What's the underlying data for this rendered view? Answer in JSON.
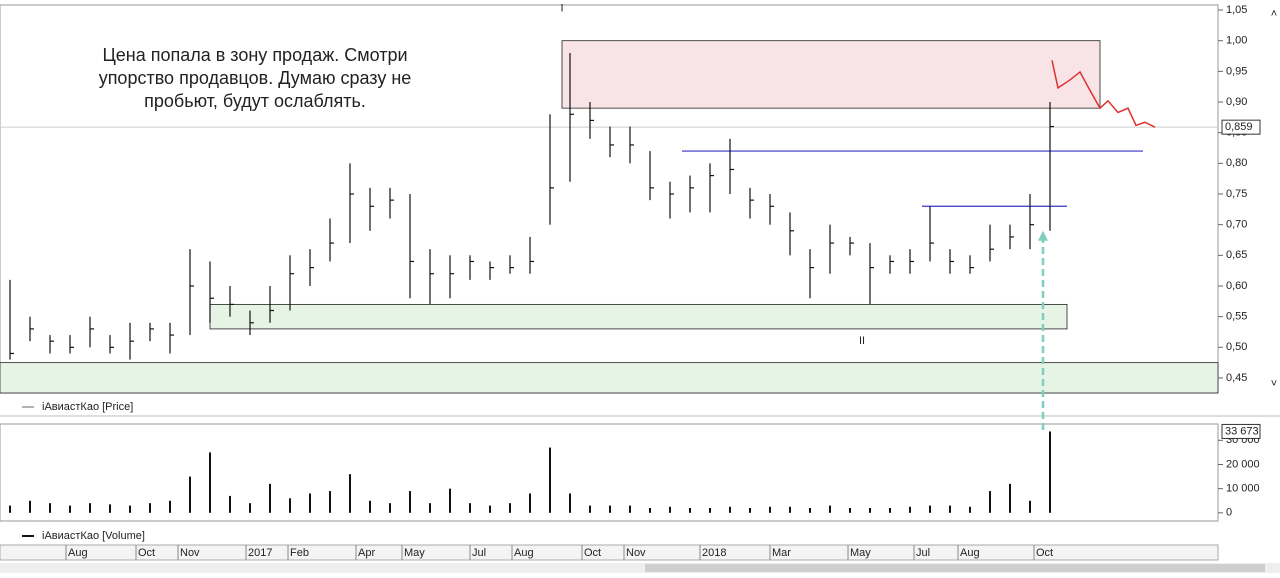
{
  "chart_data": [
    {
      "type": "hlc",
      "series": [
        {
          "name": "iАвиастКао [Price]",
          "color": "#111111",
          "high": [
            0.61,
            0.55,
            0.52,
            0.52,
            0.55,
            0.52,
            0.54,
            0.54,
            0.54,
            0.66,
            0.64,
            0.6,
            0.56,
            0.6,
            0.65,
            0.66,
            0.71,
            0.8,
            0.76,
            0.76,
            0.75,
            0.66,
            0.65,
            0.65,
            0.64,
            0.65,
            0.68,
            0.88,
            0.98,
            0.9,
            0.86,
            0.86,
            0.82,
            0.77,
            0.78,
            0.8,
            0.84,
            0.76,
            0.75,
            0.72,
            0.66,
            0.7,
            0.68,
            0.67,
            0.65,
            0.66,
            0.73,
            0.66,
            0.65,
            0.7,
            0.7,
            0.75,
            0.9
          ],
          "low": [
            0.48,
            0.51,
            0.49,
            0.49,
            0.5,
            0.49,
            0.48,
            0.51,
            0.49,
            0.52,
            0.54,
            0.55,
            0.52,
            0.54,
            0.56,
            0.6,
            0.64,
            0.67,
            0.69,
            0.71,
            0.58,
            0.57,
            0.58,
            0.61,
            0.61,
            0.62,
            0.62,
            0.7,
            0.77,
            0.84,
            0.81,
            0.8,
            0.74,
            0.71,
            0.72,
            0.72,
            0.75,
            0.71,
            0.7,
            0.65,
            0.58,
            0.62,
            0.65,
            0.57,
            0.62,
            0.62,
            0.64,
            0.62,
            0.62,
            0.64,
            0.66,
            0.66,
            0.69
          ],
          "close": [
            0.49,
            0.53,
            0.51,
            0.5,
            0.53,
            0.5,
            0.51,
            0.53,
            0.52,
            0.6,
            0.58,
            0.57,
            0.54,
            0.56,
            0.62,
            0.63,
            0.67,
            0.75,
            0.73,
            0.74,
            0.64,
            0.62,
            0.62,
            0.64,
            0.63,
            0.63,
            0.64,
            0.76,
            0.88,
            0.87,
            0.83,
            0.83,
            0.76,
            0.75,
            0.76,
            0.78,
            0.79,
            0.74,
            0.73,
            0.69,
            0.63,
            0.67,
            0.67,
            0.63,
            0.64,
            0.64,
            0.67,
            0.64,
            0.63,
            0.66,
            0.68,
            0.7,
            0.86
          ]
        }
      ],
      "xlim": [
        -0.5,
        60.4
      ],
      "ylim": [
        0.4255,
        1.0582
      ],
      "yticks": [
        {
          "value": 0.45,
          "label": "0,45"
        },
        {
          "value": 0.5,
          "label": "0,50"
        },
        {
          "value": 0.55,
          "label": "0,55"
        },
        {
          "value": 0.6,
          "label": "0,60"
        },
        {
          "value": 0.65,
          "label": "0,65"
        },
        {
          "value": 0.7,
          "label": "0,70"
        },
        {
          "value": 0.75,
          "label": "0,75"
        },
        {
          "value": 0.8,
          "label": "0,80"
        },
        {
          "value": 0.85,
          "label": "0,85"
        },
        {
          "value": 0.9,
          "label": "0,90"
        },
        {
          "value": 0.95,
          "label": "0,95"
        },
        {
          "value": 1.0,
          "label": "1,00"
        },
        {
          "value": 1.05,
          "label": "1,05"
        }
      ],
      "last": {
        "value": 0.859,
        "label": "0,859"
      },
      "note": [
        "Цена попала в зону продаж. Смотри",
        "упорство продавцов. Думаю сразу не",
        "пробьют, будут ослаблять."
      ],
      "zones": [
        {
          "x": [
            27.6,
            54.5
          ],
          "y": [
            0.89,
            1.0
          ],
          "color": "#f8e4e6"
        },
        {
          "x": [
            10,
            52.85
          ],
          "y": [
            0.53,
            0.57
          ],
          "color": "#e6f4e6"
        },
        {
          "x": [
            -0.5,
            60.4
          ],
          "y": [
            0.4255,
            0.475
          ],
          "color": "#e6f4e6"
        }
      ],
      "levels": [
        {
          "x": [
            33.6,
            56.65
          ],
          "y": 0.82,
          "color": "#3434c8"
        },
        {
          "x": [
            45.6,
            52.85
          ],
          "y": 0.73,
          "color": "#3434c8"
        }
      ],
      "labels": [
        {
          "text": "I",
          "x": 27.6,
          "y": 1.052
        },
        {
          "text": "II",
          "x": 42.6,
          "y": 0.51
        }
      ],
      "forecast": {
        "color": "#e03030",
        "x": [
          52.1,
          52.4,
          53,
          53.5,
          54,
          54.5,
          54.9,
          55.4,
          55.9,
          56.3,
          56.75,
          57.25
        ],
        "y": [
          0.968,
          0.923,
          0.936,
          0.949,
          0.919,
          0.89,
          0.902,
          0.883,
          0.89,
          0.862,
          0.867,
          0.859
        ]
      },
      "arrow": {
        "x": 51.65,
        "y": 0.69,
        "color": "#7fcfc0"
      }
    },
    {
      "type": "bar",
      "series": [
        {
          "name": "iАвиастКао [Volume]",
          "color": "#111111",
          "values": [
            3000,
            5000,
            4000,
            3000,
            4000,
            3500,
            3000,
            4000,
            5000,
            15000,
            25000,
            7000,
            4000,
            12000,
            6000,
            8000,
            9000,
            16000,
            5000,
            4000,
            9000,
            4000,
            10000,
            4000,
            3000,
            4000,
            8000,
            27000,
            8000,
            3000,
            3000,
            3000,
            2000,
            2500,
            2000,
            2000,
            2500,
            2000,
            2500,
            2500,
            2000,
            3000,
            2000,
            2000,
            2000,
            2500,
            3000,
            3000,
            2500,
            9000,
            12000,
            5000,
            33673
          ]
        }
      ],
      "xlim": [
        -0.5,
        60.4
      ],
      "ylim": [
        -3380,
        36750
      ],
      "yticks": [
        0,
        {
          "value": 10000,
          "label": "10 000"
        },
        {
          "value": 20000,
          "label": "20 000"
        },
        {
          "value": 30000,
          "label": "30 000"
        }
      ],
      "last": {
        "value": 33673,
        "label": "33 673"
      },
      "xticks": [
        {
          "value": 2.8,
          "label": "Aug"
        },
        {
          "value": 6.3,
          "label": "Oct"
        },
        {
          "value": 8.4,
          "label": "Nov"
        },
        {
          "value": 11.8,
          "label": "2017"
        },
        {
          "value": 13.9,
          "label": "Feb"
        },
        {
          "value": 17.3,
          "label": "Apr"
        },
        {
          "value": 19.6,
          "label": "May"
        },
        {
          "value": 23,
          "label": "Jul"
        },
        {
          "value": 25.1,
          "label": "Aug"
        },
        {
          "value": 28.6,
          "label": "Oct"
        },
        {
          "value": 30.7,
          "label": "Nov"
        },
        {
          "value": 34.5,
          "label": "2018"
        },
        {
          "value": 38,
          "label": "Mar"
        },
        {
          "value": 41.9,
          "label": "May"
        },
        {
          "value": 45.2,
          "label": "Jul"
        },
        {
          "value": 47.4,
          "label": "Aug"
        },
        {
          "value": 51.2,
          "label": "Oct"
        }
      ]
    }
  ]
}
